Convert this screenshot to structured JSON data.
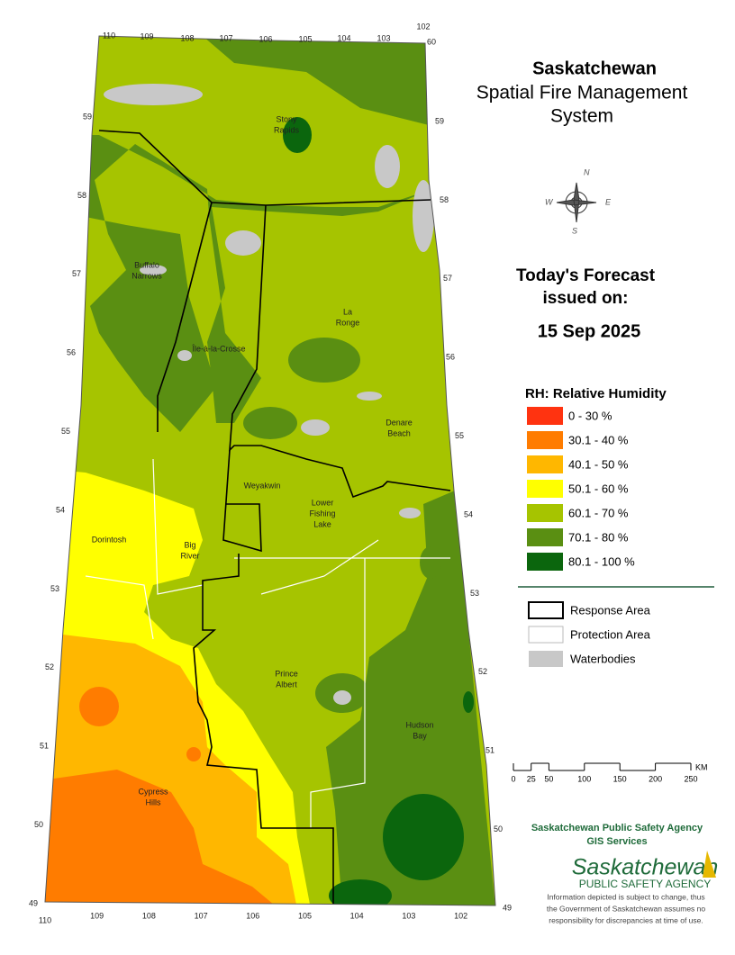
{
  "header": {
    "title": "Saskatchewan",
    "subtitle_lines": [
      "Spatial Fire Management",
      "System"
    ]
  },
  "forecast": {
    "lines": [
      "Today's Forecast",
      "issued on:"
    ],
    "date": "15 Sep 2025"
  },
  "legend": {
    "title": "RH: Relative Humidity",
    "items": [
      {
        "label": "0 - 30 %",
        "color": "#ff3310"
      },
      {
        "label": "30.1 - 40 %",
        "color": "#ff7c00"
      },
      {
        "label": "40.1 - 50 %",
        "color": "#ffb700"
      },
      {
        "label": "50.1 - 60 %",
        "color": "#ffff00"
      },
      {
        "label": "60.1 - 70 %",
        "color": "#a6c400"
      },
      {
        "label": "70.1 - 80 %",
        "color": "#5a8f12"
      },
      {
        "label": "80.1 - 100 %",
        "color": "#0b660d"
      }
    ]
  },
  "boundary_legend": [
    {
      "label": "Response Area"
    },
    {
      "label": "Protection Area"
    },
    {
      "label": "Waterbodies"
    }
  ],
  "scale": {
    "unit": "KM",
    "ticks": [
      0,
      25,
      50,
      100,
      150,
      200,
      250
    ]
  },
  "agency": {
    "lines": [
      "Saskatchewan Public Safety Agency",
      "GIS  Services"
    ]
  },
  "logo": {
    "name": "Saskatchewan",
    "tagline": "PUBLIC SAFETY AGENCY"
  },
  "disclaimer": [
    "Information depicted is subject to change, thus",
    "the Government of Saskatchewan assumes no",
    "responsibility for discrepancies at time of use."
  ],
  "places": [
    {
      "lines": [
        "Stony",
        "Rapids"
      ]
    },
    {
      "lines": [
        "Buffalo",
        "Narrows"
      ]
    },
    {
      "lines": [
        "La",
        "Ronge"
      ]
    },
    {
      "lines": [
        "Île-à-la-Crosse"
      ]
    },
    {
      "lines": [
        "Denare",
        "Beach"
      ]
    },
    {
      "lines": [
        "Weyakwin"
      ]
    },
    {
      "lines": [
        "Lower",
        "Fishing",
        "Lake"
      ]
    },
    {
      "lines": [
        "Dorintosh"
      ]
    },
    {
      "lines": [
        "Big",
        "River"
      ]
    },
    {
      "lines": [
        "Prince",
        "Albert"
      ]
    },
    {
      "lines": [
        "Hudson",
        "Bay"
      ]
    },
    {
      "lines": [
        "Cypress",
        "Hills"
      ]
    }
  ],
  "graticule": {
    "top": [
      110,
      109,
      108,
      107,
      106,
      105,
      104,
      103,
      102
    ],
    "top_corner": 60,
    "bottom": [
      110,
      109,
      108,
      107,
      106,
      105,
      104,
      103,
      102
    ],
    "left": [
      59,
      58,
      57,
      56,
      55,
      54,
      53,
      52,
      51,
      50,
      49
    ],
    "right": [
      59,
      58,
      57,
      56,
      55,
      54,
      53,
      52,
      51,
      50,
      49
    ]
  }
}
